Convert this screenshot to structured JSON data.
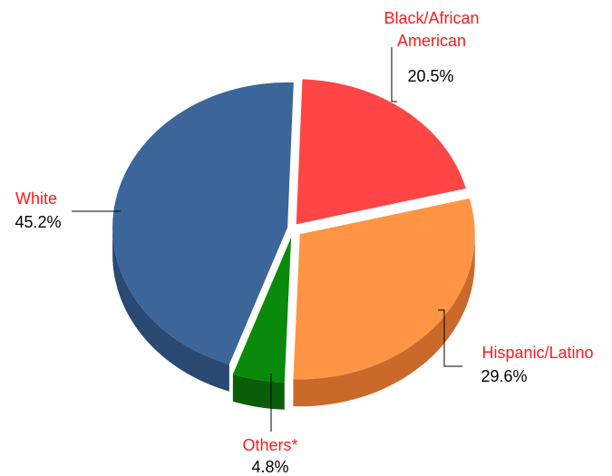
{
  "chart_data": {
    "type": "pie",
    "title": "",
    "labels": [
      "Black/African American",
      "Hispanic/Latino",
      "Others*",
      "White"
    ],
    "values": [
      20.5,
      29.6,
      4.8,
      45.2
    ],
    "value_labels": [
      "20.5%",
      "29.6%",
      "4.8%",
      "45.2%"
    ],
    "colors": [
      "#ff4545",
      "#ff9544",
      "#0a8a0a",
      "#3c6699"
    ],
    "side_colors": [
      "#b82a2a",
      "#c96a2b",
      "#0a5e0a",
      "#2a4a73"
    ],
    "style": "3d",
    "legend": "none",
    "label_text_color": "#ff1a1a",
    "value_text_color": "#000000"
  }
}
